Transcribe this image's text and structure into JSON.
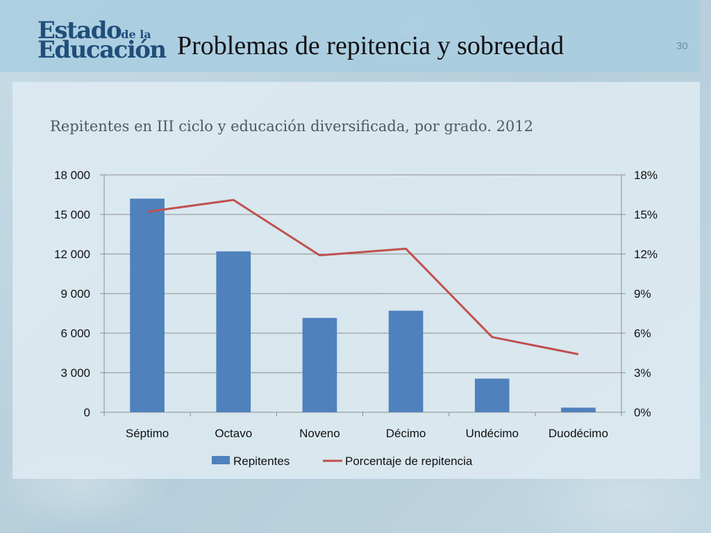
{
  "header": {
    "logo_line1": "Estado",
    "logo_line1_small": "de la",
    "logo_line2": "Educación",
    "title": "Problemas de repitencia y sobreedad",
    "page_number": "30"
  },
  "colors": {
    "bar": "#4f81bd",
    "line": "#c0504d",
    "title_band": "#a8cde0",
    "logo": "#1f4e79"
  },
  "chart_data": {
    "type": "bar",
    "title": "Repitentes en III ciclo y educación diversificada, por grado. 2012",
    "categories": [
      "Séptimo",
      "Octavo",
      "Noveno",
      "Décimo",
      "Undécimo",
      "Duodécimo"
    ],
    "series": [
      {
        "name": "Repitentes",
        "type": "bar",
        "axis": "left",
        "values": [
          16200,
          12200,
          7150,
          7700,
          2550,
          350
        ]
      },
      {
        "name": "Porcentaje de repitencia",
        "type": "line",
        "axis": "right",
        "values": [
          15.2,
          16.1,
          11.9,
          12.4,
          5.7,
          4.4
        ]
      }
    ],
    "yleft": {
      "min": 0,
      "max": 18000,
      "ticks": [
        0,
        3000,
        6000,
        9000,
        12000,
        15000,
        18000
      ],
      "tick_labels": [
        "0",
        "3 000",
        "6 000",
        "9 000",
        "12 000",
        "15 000",
        "18 000"
      ]
    },
    "yright": {
      "min": 0,
      "max": 18,
      "ticks": [
        0,
        3,
        6,
        9,
        12,
        15,
        18
      ],
      "tick_labels": [
        "0%",
        "3%",
        "6%",
        "9%",
        "12%",
        "15%",
        "18%"
      ]
    },
    "grid": true,
    "legend": "bottom"
  }
}
